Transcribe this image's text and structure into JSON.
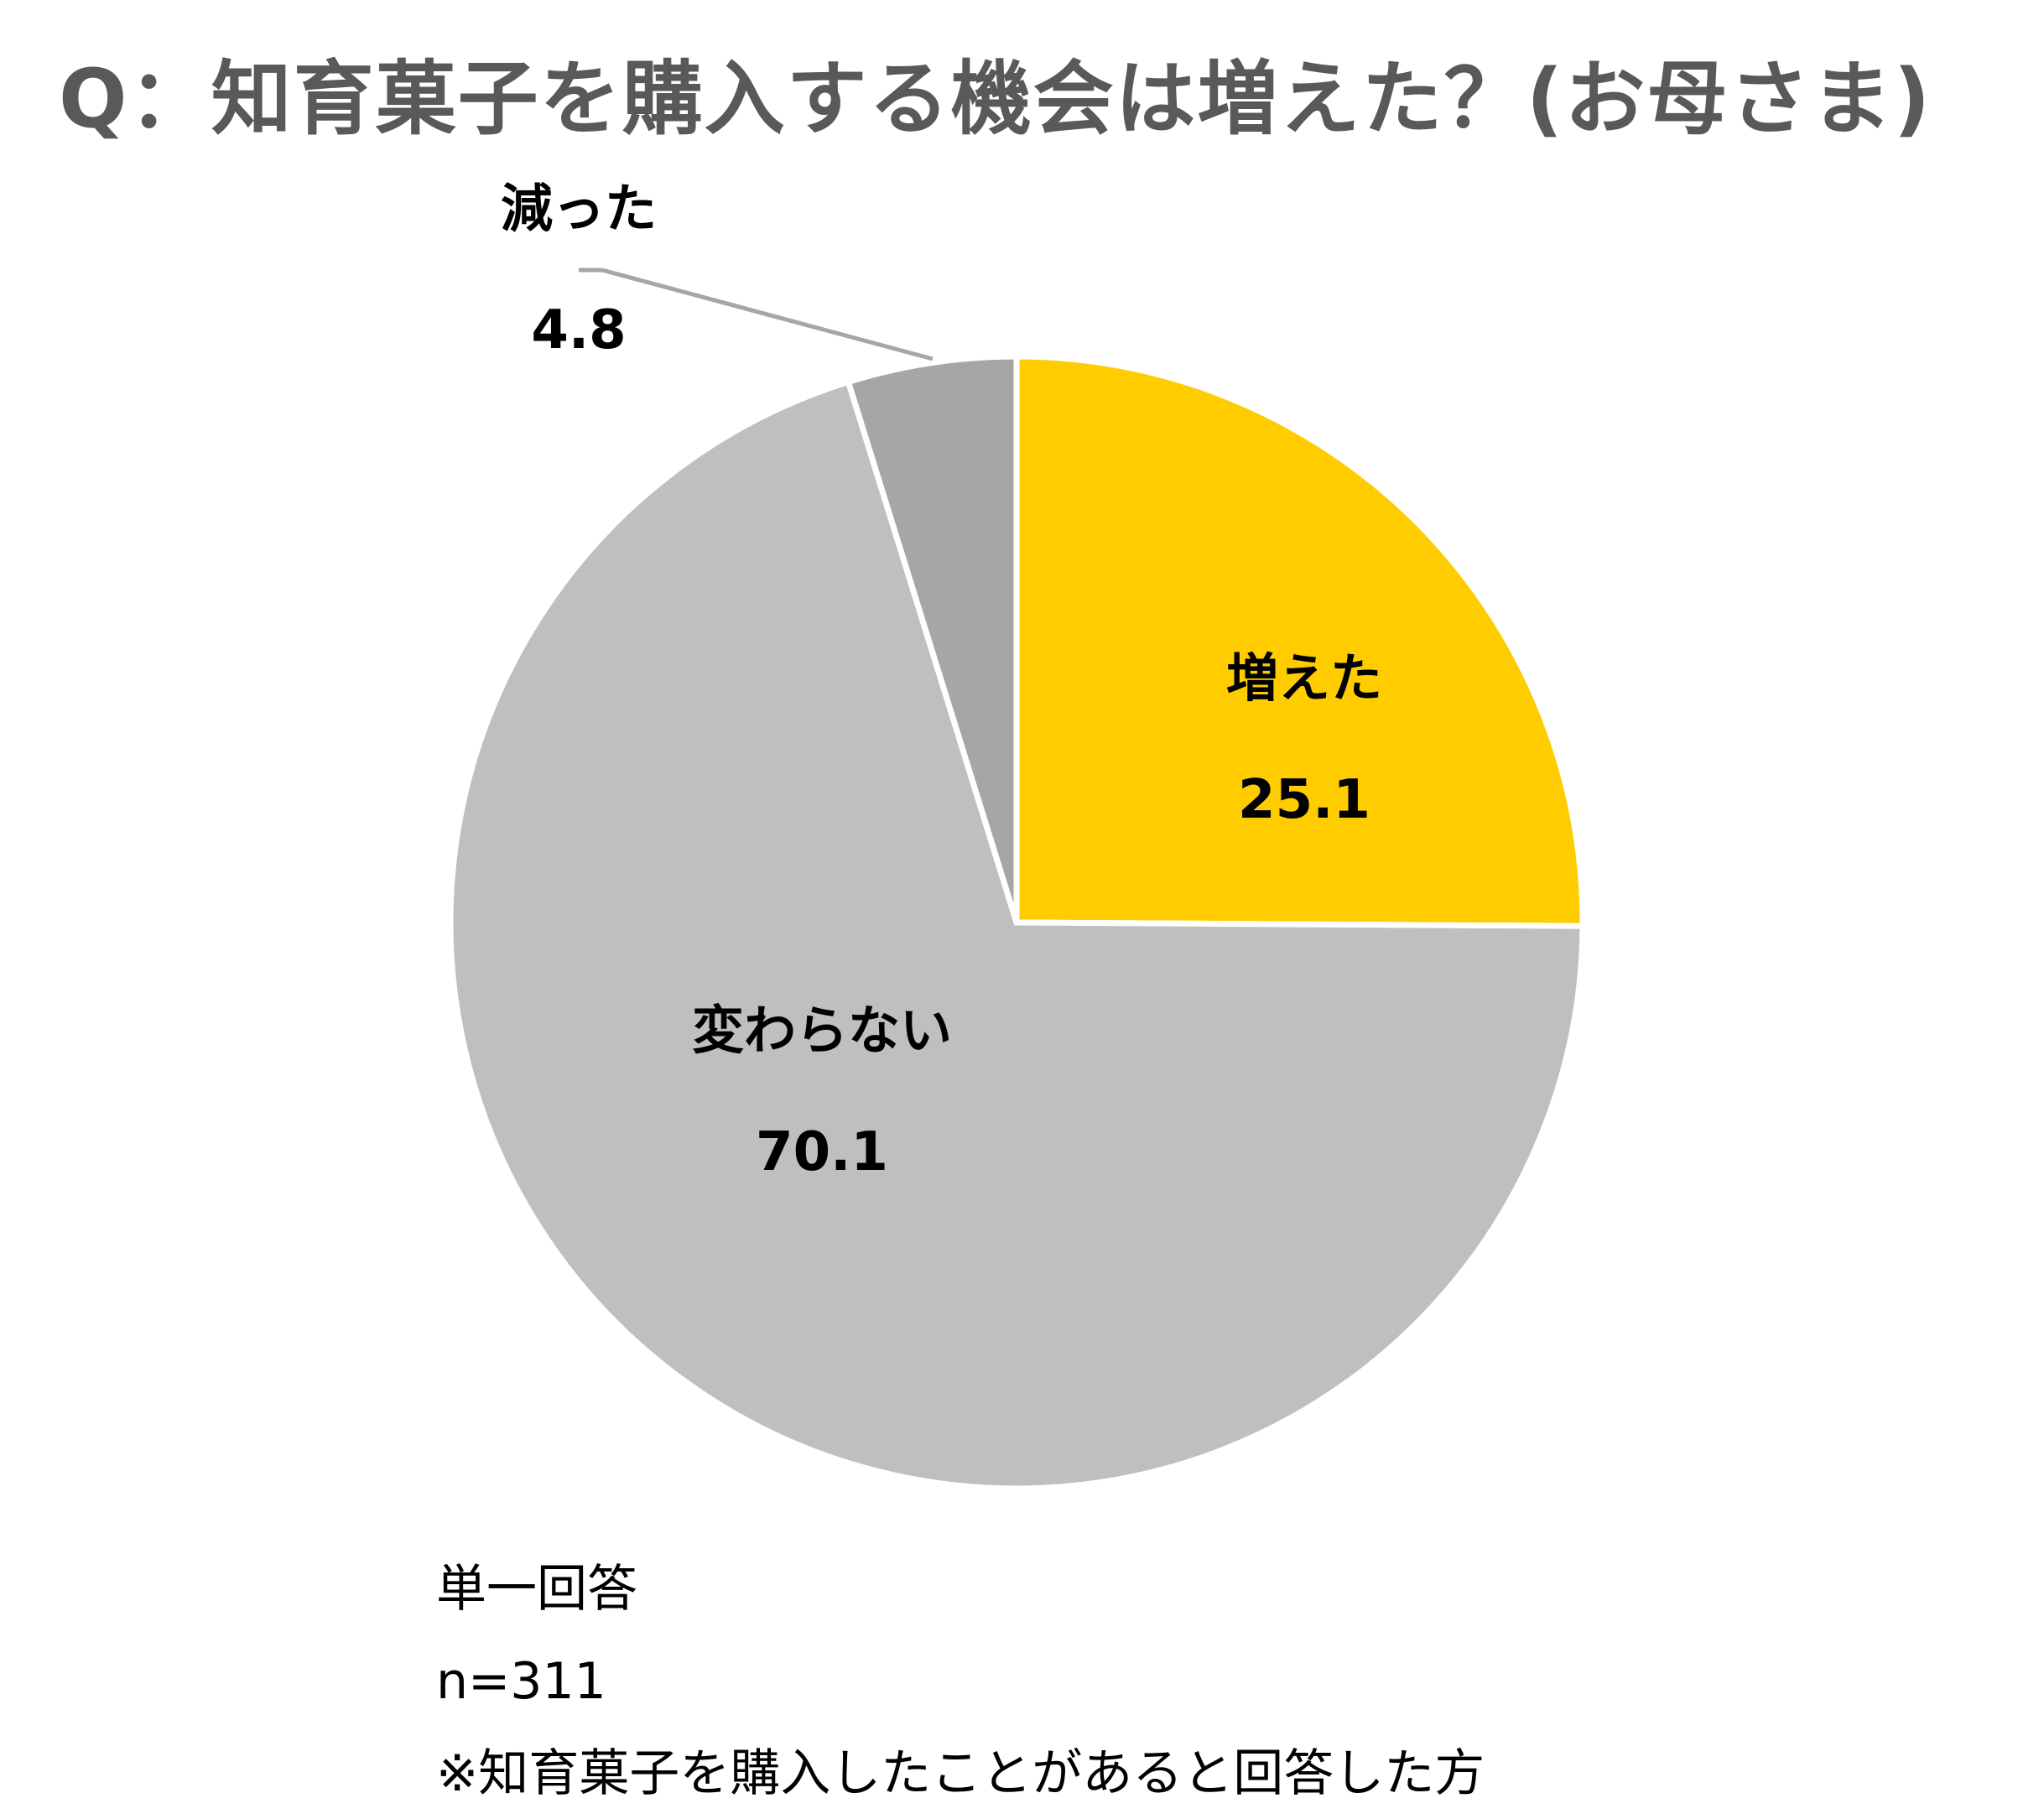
{
  "chart_data": {
    "type": "pie",
    "title": "Q：知育菓子を購入する機会は増えた？(お母さま)",
    "slices": [
      {
        "label": "増えた",
        "value": 25.1,
        "color": "#FFCC00"
      },
      {
        "label": "変わらない",
        "value": 70.1,
        "color": "#BFBFBF"
      },
      {
        "label": "減った",
        "value": 4.8,
        "color": "#A6A6A6"
      }
    ],
    "start_angle": "12 o'clock",
    "direction": "clockwise",
    "legend": "none"
  },
  "notes": {
    "answer_type": "単一回答",
    "sample": "n=311",
    "footnote": "※知育菓子を購入したことがあると回答した方"
  }
}
